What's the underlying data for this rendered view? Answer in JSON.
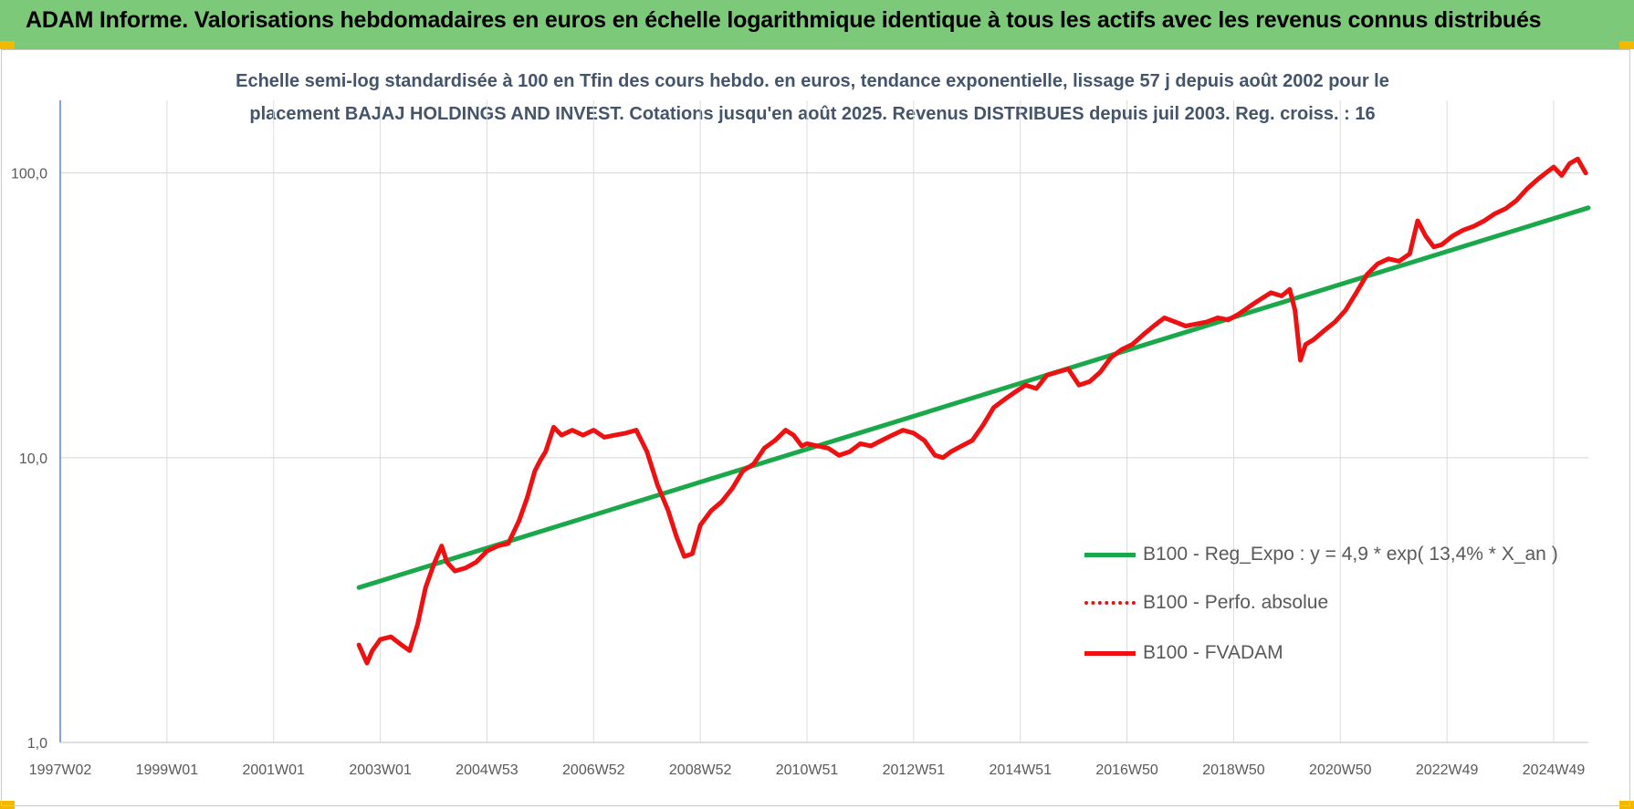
{
  "header": {
    "title": "ADAM Informe. Valorisations hebdomadaires en euros en échelle logarithmique identique à tous les actifs avec les revenus connus distribués"
  },
  "colors": {
    "header_bg": "#7dc97a",
    "corner_accent": "#f2b900",
    "trend_line": "#1aa84a",
    "price_line": "#ee1111",
    "subtitle_text": "#44546a",
    "axis_text": "#595959"
  },
  "chart_data": {
    "type": "line",
    "title_line1": "Echelle semi-log standardisée à 100 en Tfin des cours hebdo. en euros, tendance exponentielle, lissage 57 j depuis août 2002 pour le",
    "title_line2": "placement BAJAJ HOLDINGS AND INVEST. Cotations jusqu'en août 2025. Revenus DISTRIBUES depuis juil 2003. Reg. croiss. : 16",
    "y_scale": "log",
    "ylim": [
      1,
      180
    ],
    "y_ticks": [
      {
        "value": 1,
        "label": "1,0"
      },
      {
        "value": 10,
        "label": "10,0"
      },
      {
        "value": 100,
        "label": "100,0"
      }
    ],
    "xlim": [
      1997.0,
      2025.65
    ],
    "x_ticks": [
      {
        "value": 1997.0,
        "label": "1997W02"
      },
      {
        "value": 1999.0,
        "label": "1999W01"
      },
      {
        "value": 2001.0,
        "label": "2001W01"
      },
      {
        "value": 2003.0,
        "label": "2003W01"
      },
      {
        "value": 2005.0,
        "label": "2004W53"
      },
      {
        "value": 2007.0,
        "label": "2006W52"
      },
      {
        "value": 2009.0,
        "label": "2008W52"
      },
      {
        "value": 2011.0,
        "label": "2010W51"
      },
      {
        "value": 2013.0,
        "label": "2012W51"
      },
      {
        "value": 2015.0,
        "label": "2014W51"
      },
      {
        "value": 2017.0,
        "label": "2016W50"
      },
      {
        "value": 2019.0,
        "label": "2018W50"
      },
      {
        "value": 2021.0,
        "label": "2020W50"
      },
      {
        "value": 2023.0,
        "label": "2022W49"
      },
      {
        "value": 2025.0,
        "label": "2024W49"
      }
    ],
    "grid": "vertical-and-horizontal",
    "legend_placement": "bottom-right",
    "series": [
      {
        "name": "B100 - Reg_Expo : y = 4,9 * exp( 13,4% *  X_an )",
        "style": "solid",
        "color": "#1aa84a",
        "x": [
          2002.6,
          2025.65
        ],
        "y": [
          3.5,
          75.5
        ]
      },
      {
        "name": "B100 - Perfo. absolue",
        "style": "dotted",
        "color": "#ee1111",
        "x": [],
        "y": []
      },
      {
        "name": "B100 - FVADAM",
        "style": "solid",
        "color": "#ee1111",
        "x": [
          2002.6,
          2002.75,
          2002.85,
          2003.0,
          2003.2,
          2003.4,
          2003.55,
          2003.7,
          2003.85,
          2004.0,
          2004.15,
          2004.25,
          2004.4,
          2004.6,
          2004.8,
          2005.0,
          2005.2,
          2005.4,
          2005.6,
          2005.75,
          2005.9,
          2006.0,
          2006.1,
          2006.25,
          2006.4,
          2006.6,
          2006.8,
          2007.0,
          2007.2,
          2007.4,
          2007.6,
          2007.8,
          2008.0,
          2008.2,
          2008.4,
          2008.55,
          2008.7,
          2008.85,
          2009.0,
          2009.2,
          2009.4,
          2009.6,
          2009.8,
          2010.0,
          2010.2,
          2010.4,
          2010.6,
          2010.75,
          2010.9,
          2011.0,
          2011.2,
          2011.4,
          2011.6,
          2011.8,
          2012.0,
          2012.2,
          2012.4,
          2012.6,
          2012.8,
          2013.0,
          2013.2,
          2013.4,
          2013.55,
          2013.7,
          2013.9,
          2014.1,
          2014.3,
          2014.5,
          2014.7,
          2014.9,
          2015.1,
          2015.3,
          2015.5,
          2015.7,
          2015.9,
          2016.1,
          2016.3,
          2016.5,
          2016.7,
          2016.9,
          2017.1,
          2017.3,
          2017.5,
          2017.7,
          2017.9,
          2018.1,
          2018.3,
          2018.5,
          2018.7,
          2018.9,
          2019.1,
          2019.3,
          2019.5,
          2019.7,
          2019.9,
          2020.05,
          2020.15,
          2020.25,
          2020.35,
          2020.5,
          2020.7,
          2020.9,
          2021.1,
          2021.3,
          2021.5,
          2021.7,
          2021.9,
          2022.1,
          2022.3,
          2022.45,
          2022.6,
          2022.75,
          2022.9,
          2023.1,
          2023.3,
          2023.5,
          2023.7,
          2023.9,
          2024.1,
          2024.3,
          2024.5,
          2024.7,
          2024.85,
          2025.0,
          2025.15,
          2025.3,
          2025.45,
          2025.6
        ],
        "y": [
          2.2,
          1.9,
          2.1,
          2.3,
          2.35,
          2.2,
          2.1,
          2.6,
          3.5,
          4.2,
          4.9,
          4.3,
          4.0,
          4.1,
          4.3,
          4.7,
          4.9,
          5.0,
          6.0,
          7.2,
          9.0,
          9.8,
          10.5,
          12.8,
          12.0,
          12.5,
          12.0,
          12.5,
          11.8,
          12.0,
          12.2,
          12.5,
          10.5,
          8.0,
          6.5,
          5.3,
          4.5,
          4.6,
          5.8,
          6.5,
          7.0,
          7.8,
          9.0,
          9.5,
          10.8,
          11.5,
          12.5,
          12.0,
          11.0,
          11.2,
          11.0,
          10.8,
          10.2,
          10.5,
          11.2,
          11.0,
          11.5,
          12.0,
          12.5,
          12.2,
          11.5,
          10.2,
          10.0,
          10.5,
          11.0,
          11.5,
          13.0,
          15.0,
          16.0,
          17.0,
          18.0,
          17.5,
          19.5,
          20.0,
          20.5,
          18.0,
          18.5,
          20.0,
          22.5,
          24.0,
          25.0,
          27.0,
          29.0,
          31.0,
          30.0,
          29.0,
          29.5,
          30.0,
          31.0,
          30.5,
          32.0,
          34.0,
          36.0,
          38.0,
          37.0,
          39.0,
          33.0,
          22.0,
          25.0,
          26.0,
          28.0,
          30.0,
          33.0,
          38.0,
          44.0,
          48.0,
          50.0,
          49.0,
          52.0,
          68.0,
          60.0,
          55.0,
          56.0,
          60.0,
          63.0,
          65.0,
          68.0,
          72.0,
          75.0,
          80.0,
          88.0,
          95.0,
          100.0,
          105.0,
          98.0,
          108.0,
          112.0,
          100.0
        ]
      }
    ]
  }
}
